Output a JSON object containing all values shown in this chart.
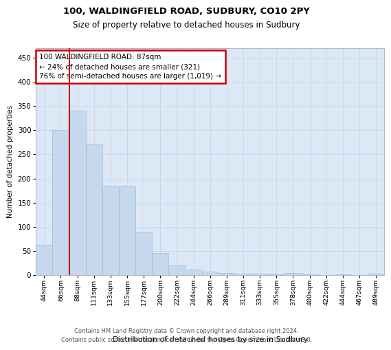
{
  "title1": "100, WALDINGFIELD ROAD, SUDBURY, CO10 2PY",
  "title2": "Size of property relative to detached houses in Sudbury",
  "xlabel": "Distribution of detached houses by size in Sudbury",
  "ylabel": "Number of detached properties",
  "categories": [
    "44sqm",
    "66sqm",
    "88sqm",
    "111sqm",
    "133sqm",
    "155sqm",
    "177sqm",
    "200sqm",
    "222sqm",
    "244sqm",
    "266sqm",
    "289sqm",
    "311sqm",
    "333sqm",
    "355sqm",
    "378sqm",
    "400sqm",
    "422sqm",
    "444sqm",
    "467sqm",
    "489sqm"
  ],
  "values": [
    62,
    300,
    340,
    272,
    184,
    184,
    88,
    45,
    20,
    11,
    7,
    4,
    3,
    3,
    1,
    4,
    1,
    0,
    1,
    0,
    3
  ],
  "bar_color": "#c5d8ee",
  "bar_edge_color": "#a0bcd8",
  "grid_color": "#c8d8e8",
  "background_color": "#dce8f5",
  "vline_color": "#cc0000",
  "annotation_text": "100 WALDINGFIELD ROAD: 87sqm\n← 24% of detached houses are smaller (321)\n76% of semi-detached houses are larger (1,019) →",
  "annotation_box_color": "#cc0000",
  "ylim": [
    0,
    470
  ],
  "yticks": [
    0,
    50,
    100,
    150,
    200,
    250,
    300,
    350,
    400,
    450
  ],
  "footer_line1": "Contains HM Land Registry data © Crown copyright and database right 2024.",
  "footer_line2": "Contains public sector information licensed under the Open Government Licence v3.0."
}
